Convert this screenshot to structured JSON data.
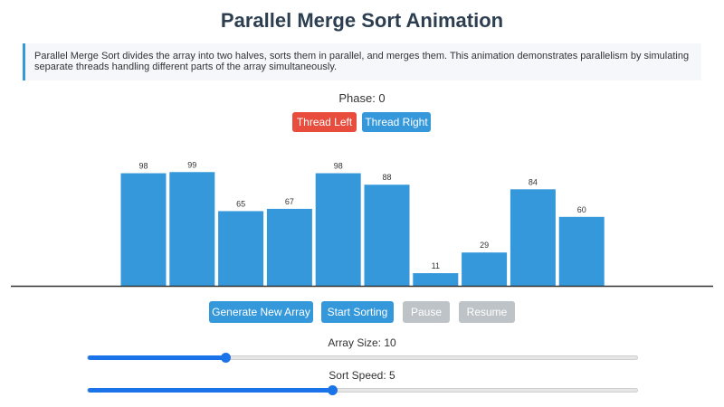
{
  "title": "Parallel Merge Sort Animation",
  "description": "Parallel Merge Sort divides the array into two halves, sorts them in parallel, and merges them. This animation demonstrates parallelism by simulating separate threads handling different parts of the array simultaneously.",
  "phase": {
    "label": "Phase: 0"
  },
  "threads": {
    "left_label": "Thread Left",
    "right_label": "Thread Right",
    "left_color": "#e74c3c",
    "right_color": "#3498db"
  },
  "chart_data": {
    "type": "bar",
    "values": [
      98,
      99,
      65,
      67,
      98,
      88,
      11,
      29,
      84,
      60
    ],
    "bar_color": "#3498db",
    "ylim": [
      0,
      100
    ]
  },
  "controls": {
    "generate_label": "Generate New Array",
    "start_label": "Start Sorting",
    "pause_label": "Pause",
    "resume_label": "Resume"
  },
  "sliders": {
    "size": {
      "label": "Array Size: 10",
      "value": 10,
      "min": 5,
      "max": 25
    },
    "speed": {
      "label": "Sort Speed: 5",
      "value": 5,
      "min": 1,
      "max": 10
    }
  },
  "colors": {
    "accent": "#3498db",
    "disabled": "#bdc3c7",
    "slider": "#1a73e8"
  }
}
